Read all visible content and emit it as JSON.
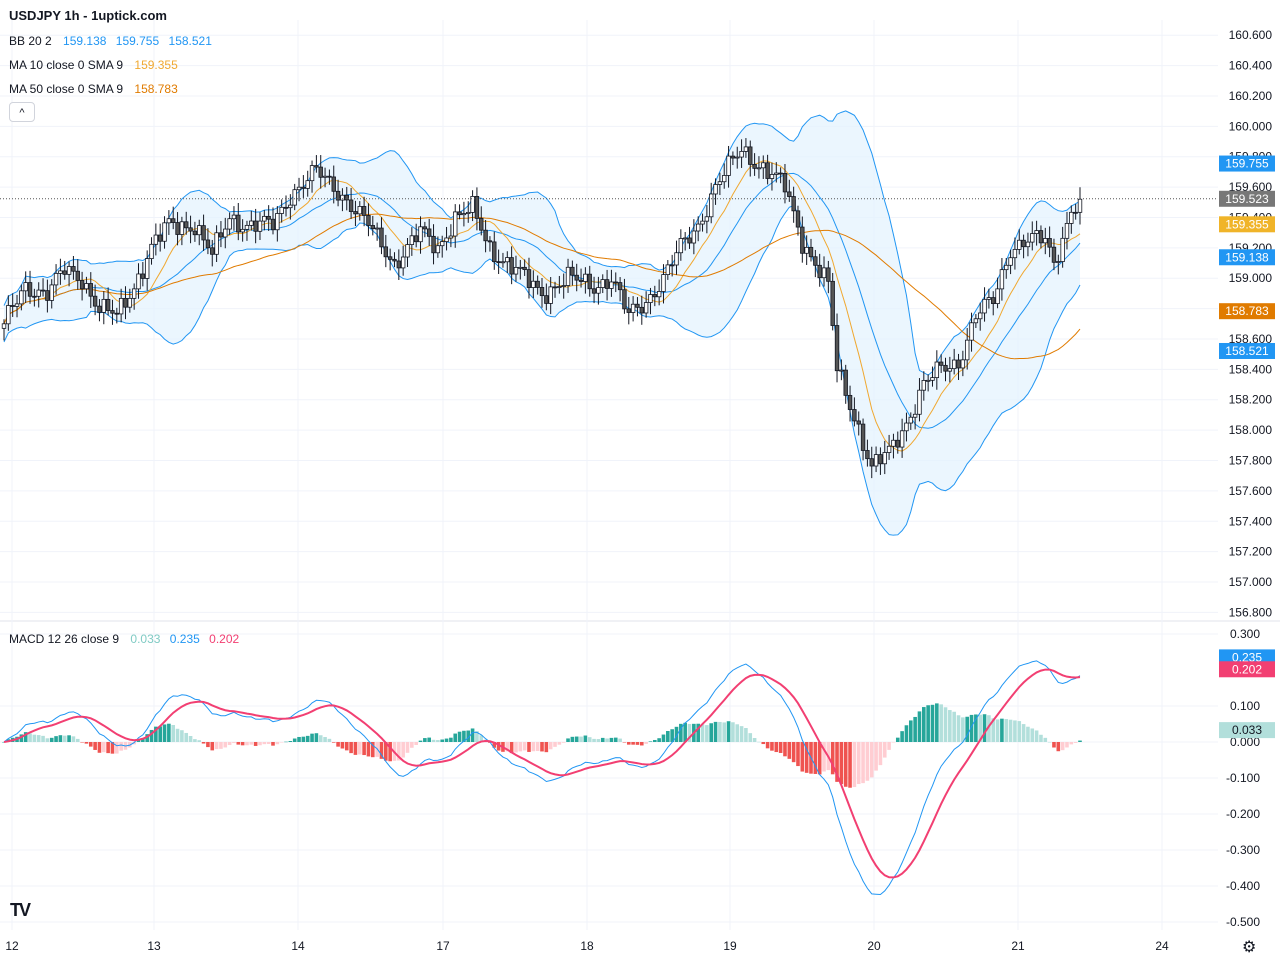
{
  "header": {
    "title": "USDJPY 1h - 1uptick.com"
  },
  "legend": {
    "bb": {
      "name": "BB 20 2",
      "values": [
        "159.138",
        "159.755",
        "158.521"
      ],
      "color": "#2196f3"
    },
    "ma10": {
      "name": "MA 10 close 0 SMA 9",
      "value": "159.355",
      "color": "#f0a830"
    },
    "ma50": {
      "name": "MA 50 close 0 SMA 9",
      "value": "158.783",
      "color": "#e07b00"
    },
    "macd": {
      "name": "MACD 12 26 close 9",
      "values": [
        "0.033",
        "0.235",
        "0.202"
      ],
      "colors": [
        "#80cbc4",
        "#2196f3",
        "#f23f72"
      ]
    }
  },
  "icons": {
    "collapse": "chevron-up-icon",
    "logo": "tradingview-logo-icon",
    "settings": "gear-icon"
  },
  "labels": {
    "collapse_glyph": "^",
    "logo_text": "TV",
    "gear_glyph": "⚙"
  },
  "colors": {
    "up": "#ffffff",
    "down": "#555555",
    "wick": "#131722",
    "bb_fill": "#e3f2fd",
    "bb_line": "#2196f3",
    "hist_up_strong": "#26a69a",
    "hist_up_weak": "#b2dfdb",
    "hist_down_strong": "#ef5350",
    "hist_down_weak": "#ffcdd2",
    "signal": "#f23f72",
    "last_price": "#777777"
  },
  "chart_data": [
    {
      "type": "candlestick",
      "title": "USDJPY 1h - 1uptick.com",
      "ylim": [
        156.75,
        160.7
      ],
      "y_ticks": [
        "160.600",
        "160.400",
        "160.200",
        "160.000",
        "159.800",
        "159.600",
        "159.400",
        "159.200",
        "159.000",
        "158.800",
        "158.600",
        "158.400",
        "158.200",
        "158.000",
        "157.800",
        "157.600",
        "157.400",
        "157.200",
        "157.000",
        "156.800"
      ],
      "x_ticks": [
        "12",
        "13",
        "14",
        "17",
        "18",
        "19",
        "20",
        "21",
        "24"
      ],
      "price_waypoints": [
        [
          0,
          158.7
        ],
        [
          5,
          158.95
        ],
        [
          10,
          158.9
        ],
        [
          14,
          159.05
        ],
        [
          18,
          159.0
        ],
        [
          22,
          158.8
        ],
        [
          26,
          158.75
        ],
        [
          30,
          158.95
        ],
        [
          34,
          159.2
        ],
        [
          38,
          159.35
        ],
        [
          44,
          159.35
        ],
        [
          48,
          159.15
        ],
        [
          52,
          159.4
        ],
        [
          56,
          159.35
        ],
        [
          62,
          159.35
        ],
        [
          66,
          159.55
        ],
        [
          72,
          159.7
        ],
        [
          78,
          159.55
        ],
        [
          84,
          159.35
        ],
        [
          90,
          159.1
        ],
        [
          96,
          159.3
        ],
        [
          100,
          159.2
        ],
        [
          104,
          159.4
        ],
        [
          108,
          159.45
        ],
        [
          112,
          159.2
        ],
        [
          118,
          159.05
        ],
        [
          124,
          158.9
        ],
        [
          130,
          159.0
        ],
        [
          136,
          158.95
        ],
        [
          140,
          159.0
        ],
        [
          144,
          158.75
        ],
        [
          148,
          158.85
        ],
        [
          152,
          159.0
        ],
        [
          156,
          159.2
        ],
        [
          160,
          159.35
        ],
        [
          164,
          159.6
        ],
        [
          170,
          159.85
        ],
        [
          176,
          159.7
        ],
        [
          180,
          159.6
        ],
        [
          184,
          159.25
        ],
        [
          190,
          158.95
        ],
        [
          192,
          158.4
        ],
        [
          196,
          158.1
        ],
        [
          200,
          157.75
        ],
        [
          204,
          157.85
        ],
        [
          208,
          158.05
        ],
        [
          212,
          158.3
        ],
        [
          216,
          158.4
        ],
        [
          220,
          158.45
        ],
        [
          224,
          158.75
        ],
        [
          228,
          158.85
        ],
        [
          232,
          159.2
        ],
        [
          236,
          159.25
        ],
        [
          240,
          159.25
        ],
        [
          242,
          159.1
        ],
        [
          246,
          159.45
        ],
        [
          248,
          159.52
        ]
      ],
      "last_price": "159.523",
      "bb_upper_label": "159.755",
      "bb_middle_label": "159.138",
      "bb_lower_label": "158.521",
      "ma10_label": "159.355",
      "ma50_label": "158.783"
    },
    {
      "type": "bar+line",
      "title": "MACD 12 26 close 9",
      "ylim": [
        -0.5,
        0.3
      ],
      "y_ticks": [
        "0.300",
        "0.100",
        "0.000",
        "-0.100",
        "-0.200",
        "-0.300",
        "-0.400",
        "-0.500"
      ],
      "histogram_label": "0.033",
      "macd_label": "0.235",
      "signal_label": "0.202"
    }
  ]
}
